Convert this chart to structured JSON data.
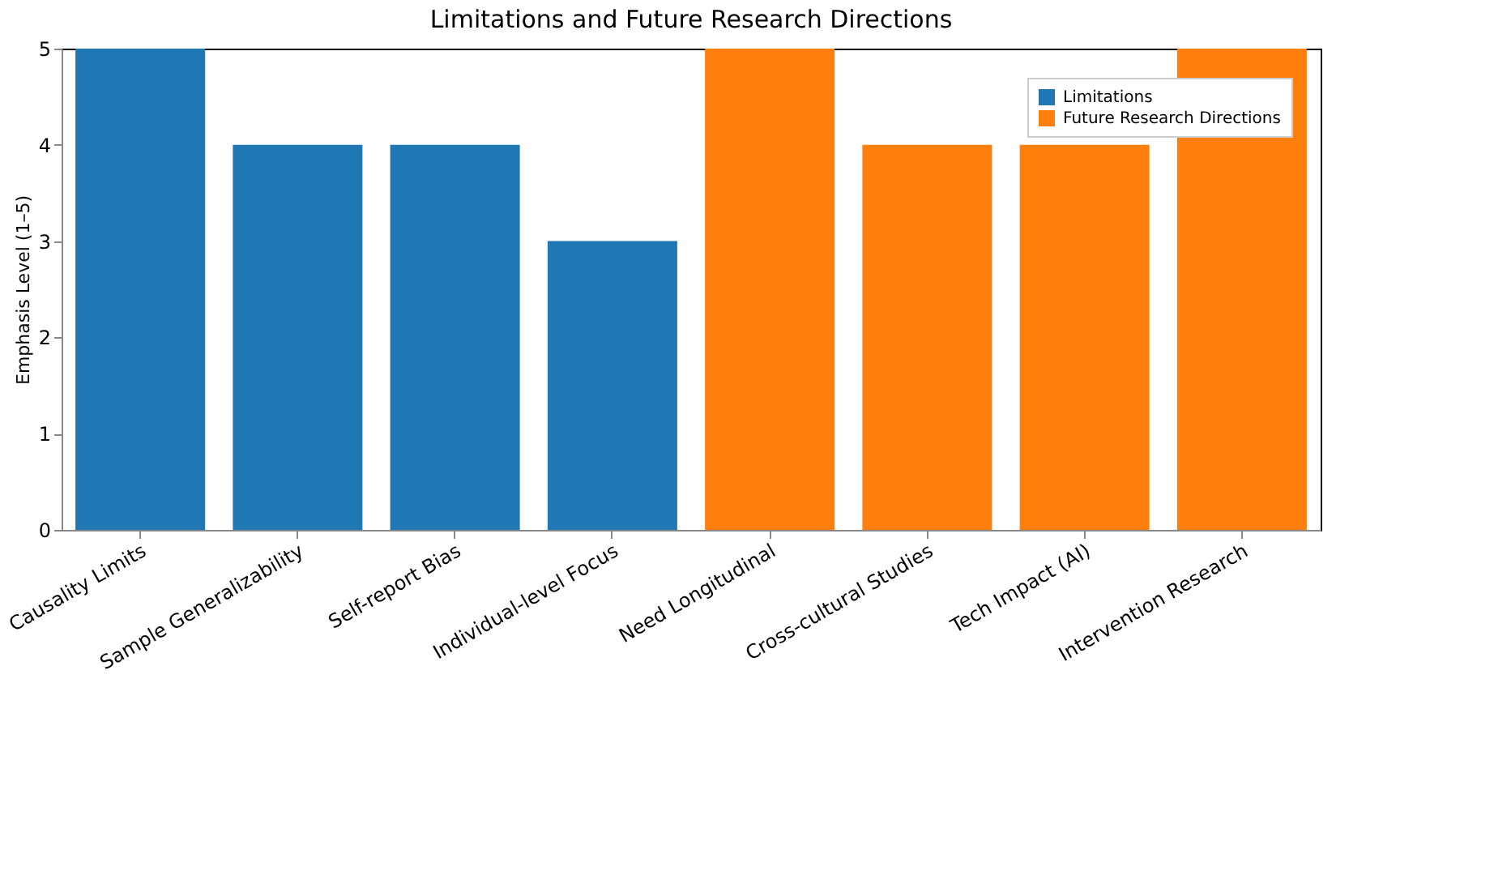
{
  "chart_data": {
    "type": "bar",
    "title": "Limitations and Future Research Directions",
    "ylabel": "Emphasis Level (1–5)",
    "categories": [
      "Causality Limits",
      "Sample Generalizability",
      "Self-report Bias",
      "Individual-level Focus",
      "Need Longitudinal",
      "Cross-cultural Studies",
      "Tech Impact (AI)",
      "Intervention Research"
    ],
    "series": [
      {
        "name": "Limitations",
        "color": "#1f77b4",
        "values": [
          5,
          4,
          4,
          3,
          null,
          null,
          null,
          null
        ]
      },
      {
        "name": "Future Research Directions",
        "color": "#ff7f0e",
        "values": [
          null,
          null,
          null,
          null,
          5,
          4,
          4,
          5
        ]
      }
    ],
    "ylim": [
      0,
      5
    ],
    "yticks": [
      0,
      1,
      2,
      3,
      4,
      5
    ],
    "grid": false,
    "legend": "top right"
  }
}
